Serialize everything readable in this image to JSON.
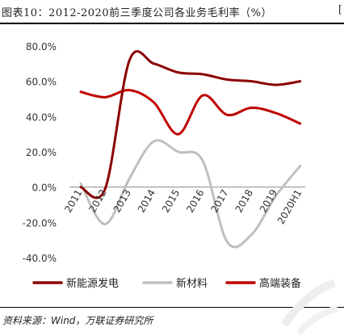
{
  "header": {
    "title": "图表10：2012-2020前三季度公司各业务毛利率（%）",
    "edge_glyph": "["
  },
  "footer": {
    "source": "资料来源：Wind，万联证券研究所"
  },
  "chart_data": {
    "type": "line",
    "title": "",
    "xlabel": "",
    "ylabel": "",
    "categories": [
      "2011",
      "2012",
      "2013",
      "2014",
      "2015",
      "2016",
      "2017",
      "2018",
      "2019",
      "2020H1"
    ],
    "ylim": [
      -40,
      80
    ],
    "yticks": [
      -40,
      -20,
      0,
      20,
      40,
      60,
      80
    ],
    "ytick_labels": [
      "-40.0%",
      "-20.0%",
      "0.0%",
      "20.0%",
      "40.0%",
      "60.0%",
      "80.0%"
    ],
    "grid": false,
    "legend_position": "bottom",
    "series": [
      {
        "name": "新能源发电",
        "color": "#8B0000",
        "values": [
          0,
          -1,
          72,
          70,
          65,
          64,
          61,
          60,
          58,
          60
        ]
      },
      {
        "name": "新材料",
        "color": "#BFBFBF",
        "values": [
          2,
          -21,
          5,
          26,
          20,
          15,
          -31,
          -27,
          -5,
          12
        ]
      },
      {
        "name": "高端装备",
        "color": "#C00000",
        "values": [
          54,
          51,
          55,
          48,
          30,
          52,
          41,
          45,
          42,
          36
        ]
      }
    ]
  }
}
